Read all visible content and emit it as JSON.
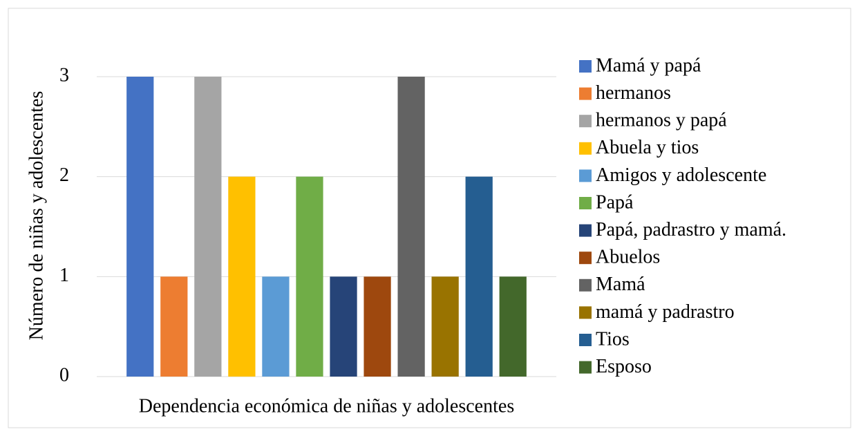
{
  "chart_data": {
    "type": "bar",
    "ylabel": "Número de niñas y adolescentes",
    "categories": [
      "Dependencia económica de niñas y adolescentes"
    ],
    "series": [
      {
        "name": "Mamá y papá",
        "color": "#4472c4",
        "values": [
          3
        ]
      },
      {
        "name": "hermanos",
        "color": "#ed7d31",
        "values": [
          1
        ]
      },
      {
        "name": "hermanos y papá",
        "color": "#a5a5a5",
        "values": [
          3
        ]
      },
      {
        "name": "Abuela y tios",
        "color": "#ffc000",
        "values": [
          2
        ]
      },
      {
        "name": "Amigos y adolescente",
        "color": "#5b9bd5",
        "values": [
          1
        ]
      },
      {
        "name": "Papá",
        "color": "#70ad47",
        "values": [
          2
        ]
      },
      {
        "name": "Papá, padrastro y mamá.",
        "color": "#264478",
        "values": [
          1
        ]
      },
      {
        "name": "Abuelos",
        "color": "#9e480e",
        "values": [
          1
        ]
      },
      {
        "name": "Mamá",
        "color": "#636363",
        "values": [
          3
        ]
      },
      {
        "name": "mamá y padrastro",
        "color": "#997300",
        "values": [
          1
        ]
      },
      {
        "name": "Tios",
        "color": "#255e91",
        "values": [
          2
        ]
      },
      {
        "name": "Esposo",
        "color": "#43682b",
        "values": [
          1
        ]
      }
    ],
    "ylim": [
      0,
      3
    ],
    "yticks": [
      0,
      1,
      2,
      3
    ],
    "grid": true,
    "legend": "right"
  }
}
